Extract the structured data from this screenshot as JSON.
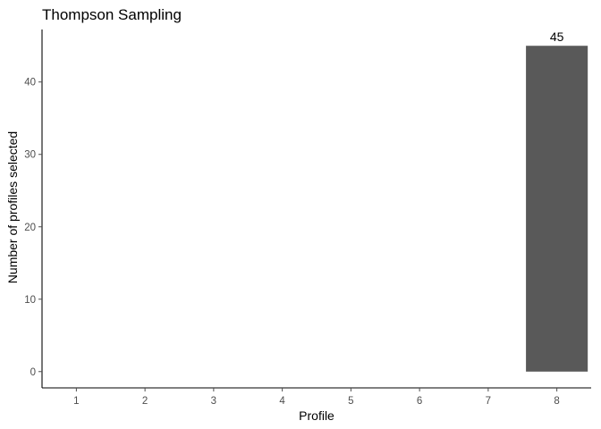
{
  "chart_data": {
    "type": "bar",
    "title": "Thompson Sampling",
    "xlabel": "Profile",
    "ylabel": "Number of profiles selected",
    "categories": [
      "1",
      "2",
      "3",
      "4",
      "5",
      "6",
      "7",
      "8"
    ],
    "values": [
      0,
      0,
      0,
      0,
      0,
      0,
      0,
      45
    ],
    "data_labels": [
      "",
      "",
      "",
      "",
      "",
      "",
      "",
      "45"
    ],
    "ylim": [
      -2.25,
      47.25
    ],
    "yticks": [
      0,
      10,
      20,
      30,
      40
    ],
    "grid": false,
    "legend": "none",
    "bar_color": "#595959",
    "axis_color": "#000000",
    "tick_label_color": "#4d4d4d"
  }
}
